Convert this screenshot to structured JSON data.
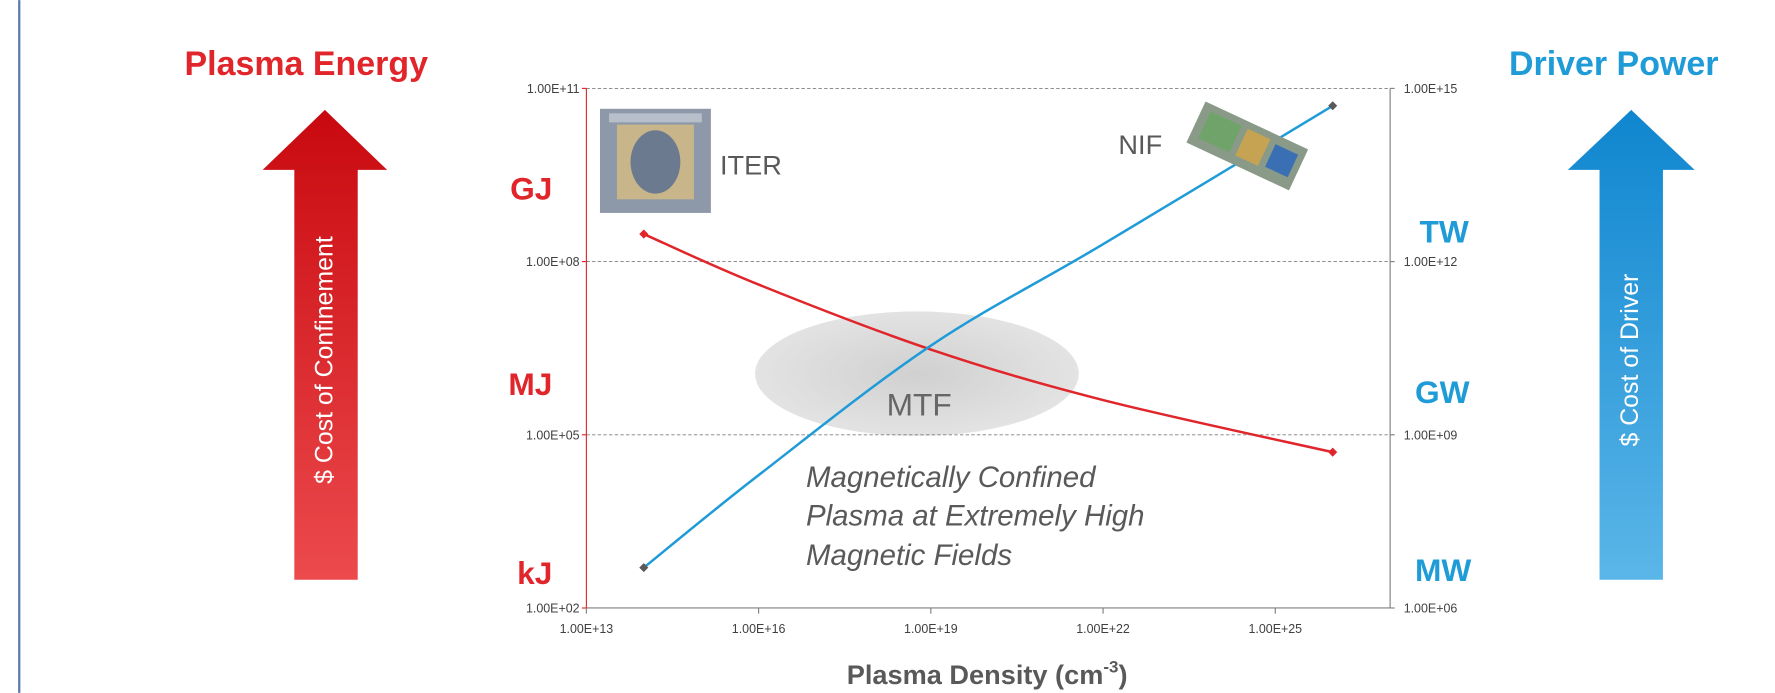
{
  "chart_data": {
    "type": "line",
    "left_title": "Plasma Energy",
    "right_title": "Driver Power",
    "left_arrow_text": "$ Cost of Confinement",
    "right_arrow_text": "$ Cost of Driver",
    "left_units": [
      "GJ",
      "MJ",
      "kJ"
    ],
    "right_units": [
      "TW",
      "GW",
      "MW"
    ],
    "annotations": {
      "iter": "ITER",
      "nif": "NIF",
      "mtf": "MTF",
      "description": [
        "Magnetically Confined",
        "Plasma at Extremely High",
        "Magnetic Fields"
      ]
    },
    "x_label": {
      "text": "Plasma Density (cm",
      "superscript": "-3",
      "suffix": ")"
    },
    "log_x": true,
    "log_y": true,
    "xlim": [
      10000000000000.0,
      1e+27
    ],
    "xticks": [
      {
        "value": 10000000000000.0,
        "label": "1.00E+13"
      },
      {
        "value": 1e+16,
        "label": "1.00E+16"
      },
      {
        "value": 1e+19,
        "label": "1.00E+19"
      },
      {
        "value": 1e+22,
        "label": "1.00E+22"
      },
      {
        "value": 1e+25,
        "label": "1.00E+25"
      }
    ],
    "ylim": [
      100.0,
      100000000000.0
    ],
    "yticks": [
      {
        "value": 100.0,
        "label": "1.00E+02"
      },
      {
        "value": 100000.0,
        "label": "1.00E+05"
      },
      {
        "value": 100000000.0,
        "label": "1.00E+08"
      },
      {
        "value": 100000000000.0,
        "label": "1.00E+11"
      }
    ],
    "y2lim": [
      1000000.0,
      1000000000000000.0
    ],
    "y2ticks": [
      {
        "value": 1000000.0,
        "label": "1.00E+06"
      },
      {
        "value": 1000000000.0,
        "label": "1.00E+09"
      },
      {
        "value": 1000000000000.0,
        "label": "1.00E+12"
      },
      {
        "value": 1000000000000000.0,
        "label": "1.00E+15"
      }
    ],
    "grid": true,
    "series": [
      {
        "color": "#e0262b",
        "x": [
          100000000000000.0,
          1e+16,
          1e+19,
          1e+22,
          1e+26
        ],
        "values": [
          300000000.0,
          40000000.0,
          3000000.0,
          400000.0,
          50000.0
        ]
      },
      {
        "color": "#1f9bd7",
        "axis": "y2",
        "x": [
          100000000000000.0,
          1e+16,
          1e+19,
          1e+22,
          1e+26
        ],
        "values": [
          5000000.0,
          200000000.0,
          35000000000.0,
          2000000000000.0,
          500000000000000.0
        ]
      }
    ]
  }
}
